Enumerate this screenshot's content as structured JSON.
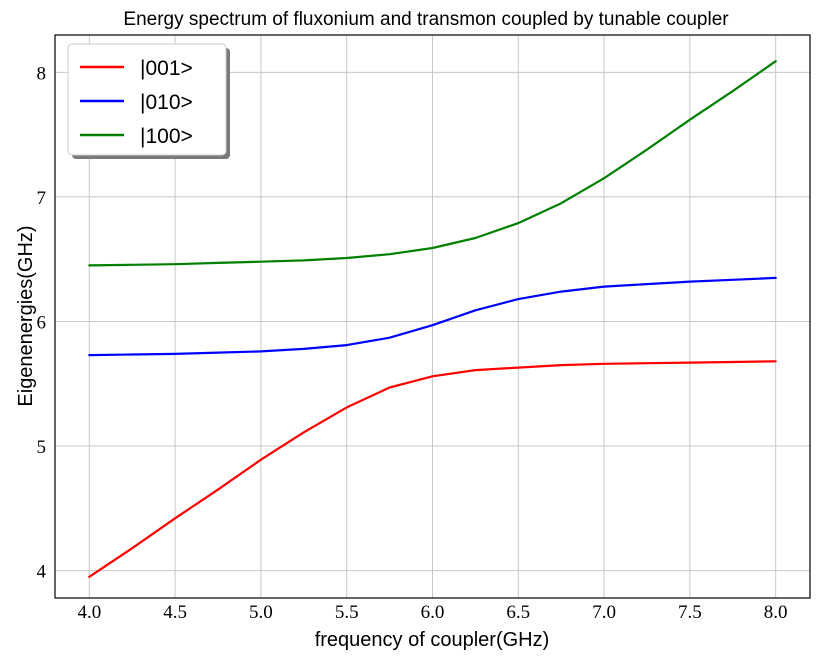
{
  "chart_data": {
    "type": "line",
    "title": "Energy spectrum of fluxonium and transmon coupled by tunable coupler",
    "xlabel": "frequency of coupler(GHz)",
    "ylabel": "Eigenenergies(GHz)",
    "xlim": [
      3.8,
      8.2
    ],
    "ylim": [
      3.78,
      8.3
    ],
    "xticks": [
      "4.0",
      "4.5",
      "5.0",
      "5.5",
      "6.0",
      "6.5",
      "7.0",
      "7.5",
      "8.0"
    ],
    "yticks": [
      "4",
      "5",
      "6",
      "7",
      "8"
    ],
    "grid": true,
    "legend_position": "top-left",
    "x": [
      4.0,
      4.25,
      4.5,
      4.75,
      5.0,
      5.25,
      5.5,
      5.75,
      6.0,
      6.25,
      6.5,
      6.75,
      7.0,
      7.25,
      7.5,
      7.75,
      8.0
    ],
    "series": [
      {
        "name": "|001>",
        "color": "#ff0000",
        "values": [
          3.95,
          4.18,
          4.42,
          4.65,
          4.89,
          5.11,
          5.31,
          5.47,
          5.56,
          5.61,
          5.63,
          5.65,
          5.66,
          5.665,
          5.67,
          5.675,
          5.68
        ]
      },
      {
        "name": "|010>",
        "color": "#0000ff",
        "values": [
          5.73,
          5.735,
          5.74,
          5.75,
          5.76,
          5.78,
          5.81,
          5.87,
          5.97,
          6.09,
          6.18,
          6.24,
          6.28,
          6.3,
          6.32,
          6.335,
          6.35
        ]
      },
      {
        "name": "|100>",
        "color": "#008000",
        "values": [
          6.45,
          6.455,
          6.46,
          6.47,
          6.48,
          6.49,
          6.51,
          6.54,
          6.59,
          6.67,
          6.79,
          6.95,
          7.15,
          7.38,
          7.62,
          7.85,
          8.09
        ]
      }
    ]
  }
}
